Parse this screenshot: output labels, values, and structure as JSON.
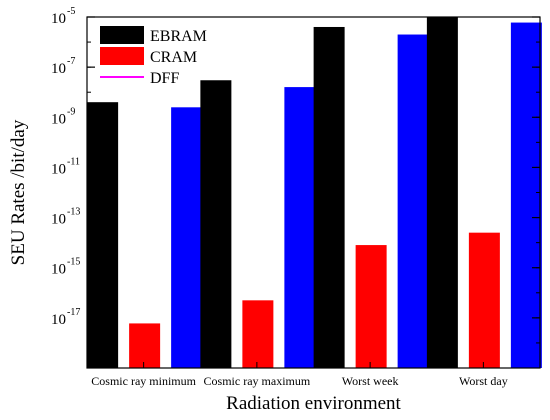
{
  "chart_data": {
    "type": "bar",
    "xlabel": "Radiation environment",
    "ylabel": "SEU Rates /bit/day",
    "y_scale": "log",
    "ylim": [
      1e-19,
      1e-05
    ],
    "y_ticks": [
      {
        "exp": -17,
        "label": "-17"
      },
      {
        "exp": -15,
        "label": "-15"
      },
      {
        "exp": -13,
        "label": "-13"
      },
      {
        "exp": -11,
        "label": "-11"
      },
      {
        "exp": -9,
        "label": "-9"
      },
      {
        "exp": -7,
        "label": "-7"
      },
      {
        "exp": -5,
        "label": "-5"
      }
    ],
    "categories": [
      "Cosmic ray minimum",
      "Cosmic ray maximum",
      "Worst week",
      "Worst day"
    ],
    "series": [
      {
        "name": "EBRAM",
        "color": "#000000",
        "values": [
          4e-09,
          3e-08,
          4e-06,
          1e-05
        ]
      },
      {
        "name": "CRAM",
        "color": "#ff0000",
        "values": [
          6e-18,
          5e-17,
          8e-15,
          2.5e-14
        ]
      },
      {
        "name": "DFF",
        "color": "#0000ff",
        "values": [
          2.5e-09,
          1.6e-08,
          2e-06,
          6e-06
        ]
      }
    ],
    "legend_position": "top-left",
    "grid": false
  }
}
